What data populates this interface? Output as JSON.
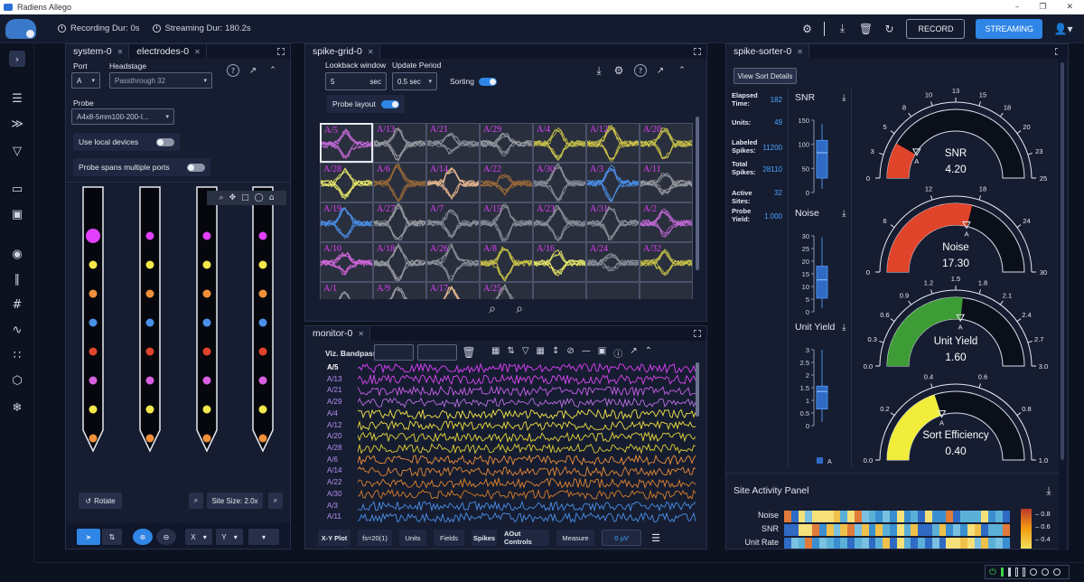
{
  "window": {
    "title": "Radiens Allego"
  },
  "topbar": {
    "recording_dur": "Recording Dur: 0s",
    "streaming_dur": "Streaming Dur: 180.2s",
    "record_label": "RECORD",
    "streaming_label": "STREAMING"
  },
  "colors": {
    "accent": "#2f86e6",
    "panel": "#161d31",
    "background": "#0d1220",
    "magenta": "#e040fb"
  },
  "system_panel": {
    "tabs": [
      "system-0",
      "electrodes-0"
    ],
    "port_label": "Port",
    "port_value": "A",
    "headstage_label": "Headstage",
    "headstage_value": "Passthrough 32",
    "probe_label": "Probe",
    "probe_value": "A4x8-5mm100-200-I...",
    "use_local_label": "Use local devices",
    "spans_ports_label": "Probe spans multiple ports",
    "rotate_label": "Rotate",
    "site_size_label": "Site Size: 2.0x",
    "x_label": "X",
    "y_label": "Y"
  },
  "spike_grid": {
    "tab": "spike-grid-0",
    "lookback_label": "Lookback window",
    "lookback_value": "5",
    "lookback_unit": "sec",
    "update_label": "Update Period",
    "update_value": "0.5 sec",
    "sorting_label": "Sorting",
    "probe_layout_label": "Probe layout",
    "cells": [
      [
        "A/5",
        "A/13",
        "A/21",
        "A/29",
        "A/4",
        "A/12",
        "A/20"
      ],
      [
        "A/28",
        "A/6",
        "A/14",
        "A/22",
        "A/30",
        "A/3",
        "A/11"
      ],
      [
        "A/19",
        "A/27",
        "A/7",
        "A/15",
        "A/23",
        "A/31",
        "A/2"
      ],
      [
        "A/10",
        "A/18",
        "A/26",
        "A/8",
        "A/16",
        "A/24",
        "A/32"
      ],
      [
        "A/1",
        "A/9",
        "A/17",
        "A/25",
        "",
        "",
        ""
      ]
    ]
  },
  "monitor": {
    "tab": "monitor-0",
    "viz_bandpass_label": "Viz. Bandpass",
    "channels": [
      "A/5",
      "A/13",
      "A/21",
      "A/29",
      "A/4",
      "A/12",
      "A/20",
      "A/28",
      "A/6",
      "A/14",
      "A/22",
      "A/30",
      "A/3",
      "A/11"
    ],
    "bottom_buttons": [
      "X-Y Plot",
      "fs=20(1)",
      "Units",
      "Fields",
      "Spikes",
      "AOut Controls",
      "Measure"
    ],
    "measure_value": "0 µV"
  },
  "spike_sorter": {
    "tab": "spike-sorter-0",
    "view_sort_label": "View Sort Details",
    "stats": [
      {
        "label": "Elapsed Time:",
        "value": "182"
      },
      {
        "label": "Units:",
        "value": "49"
      },
      {
        "label": "Labeled Spikes:",
        "value": "11200"
      },
      {
        "label": "Total Spikes:",
        "value": "28110"
      },
      {
        "label": "Active Sites:",
        "value": "32"
      },
      {
        "label": "Probe Yield:",
        "value": "1.000"
      }
    ],
    "box_titles": [
      "SNR",
      "Noise",
      "Unit Yield"
    ],
    "legend_a": "A",
    "snr_ticks": [
      "150",
      "100",
      "50",
      "0"
    ],
    "noise_ticks": [
      "30",
      "25",
      "20",
      "15",
      "10",
      "5",
      "0"
    ],
    "yield_ticks": [
      "3",
      "2.5",
      "2",
      "1.5",
      "1",
      "0.5",
      "0"
    ],
    "gauges": [
      {
        "title": "SNR",
        "value": "4.20",
        "level": 0.168,
        "color": "#e0442a",
        "ticks": [
          "0",
          "3",
          "5",
          "8",
          "10",
          "13",
          "15",
          "18",
          "20",
          "23",
          "25"
        ],
        "max": 25
      },
      {
        "title": "Noise",
        "value": "17.30",
        "level": 0.577,
        "color": "#e0442a",
        "ticks": [
          "0",
          "6",
          "12",
          "18",
          "24",
          "30"
        ],
        "max": 30
      },
      {
        "title": "Unit Yield",
        "value": "1.60",
        "level": 0.533,
        "color": "#3d9c35",
        "ticks": [
          "0.0",
          "0.3",
          "0.6",
          "0.9",
          "1.2",
          "1.5",
          "1.8",
          "2.1",
          "2.4",
          "2.7",
          "3.0"
        ],
        "max": 3
      },
      {
        "title": "Sort Efficiency",
        "value": "0.40",
        "level": 0.4,
        "color": "#f0ee3a",
        "ticks": [
          "0.0",
          "0.2",
          "0.4",
          "0.6",
          "0.8",
          "1.0"
        ],
        "max": 1
      }
    ],
    "site_activity_title": "Site Activity Panel",
    "heat_rows": [
      "Noise",
      "SNR",
      "Unit Rate"
    ],
    "heat_scale": [
      "0.8",
      "0.6",
      "0.4"
    ]
  }
}
